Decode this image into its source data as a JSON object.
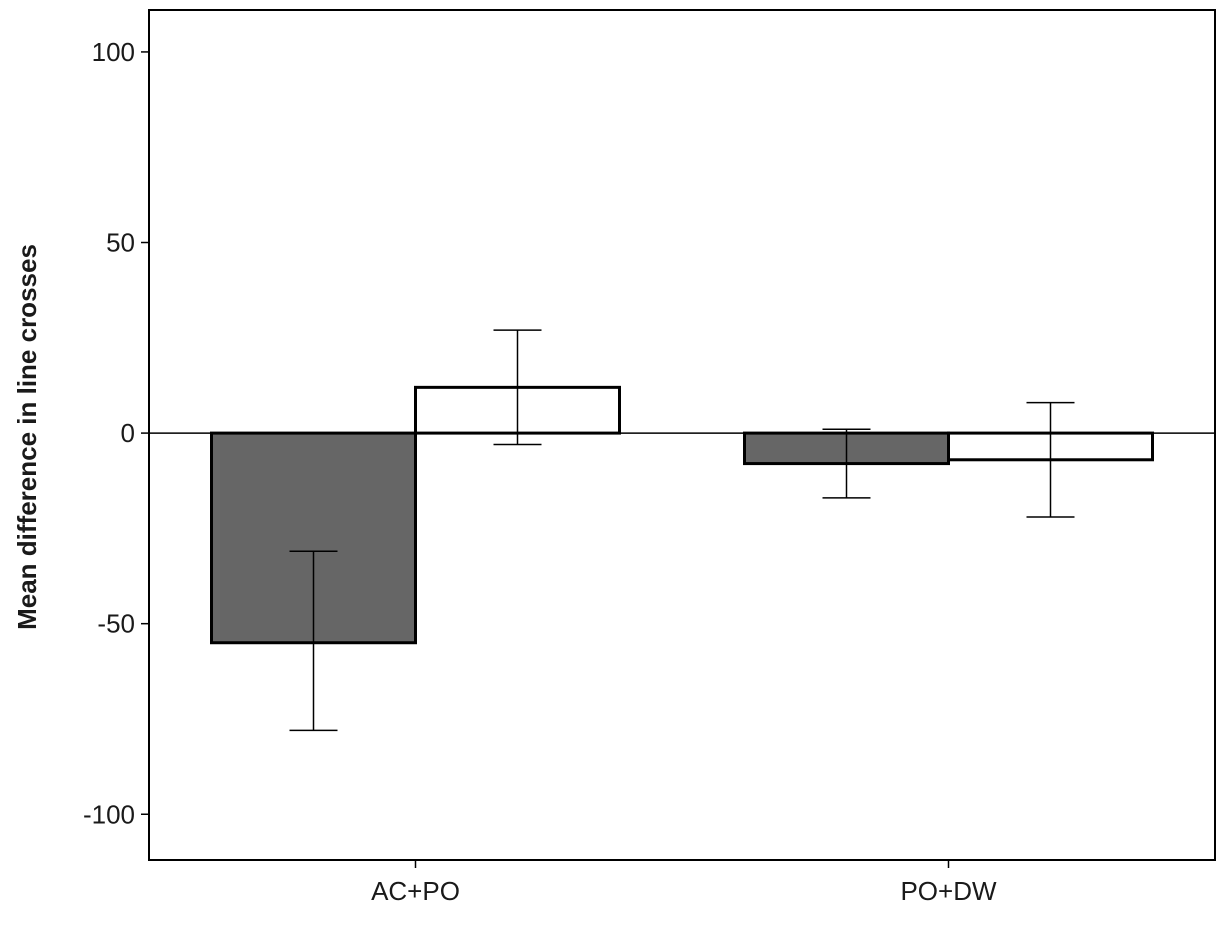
{
  "chart_data": {
    "type": "bar",
    "categories": [
      "AC+PO",
      "PO+DW"
    ],
    "series": [
      {
        "fill": "#666666",
        "values": [
          -55,
          -8
        ],
        "error_low": [
          -78,
          -17
        ],
        "error_high": [
          -31,
          1
        ]
      },
      {
        "fill": "#ffffff",
        "values": [
          12,
          -7
        ],
        "error_low": [
          -3,
          -22
        ],
        "error_high": [
          27,
          8
        ]
      }
    ],
    "ylabel": "Mean difference in line crosses",
    "xlabel": "",
    "ylim": [
      -112,
      111
    ],
    "yticks": [
      100,
      50,
      0,
      -50,
      -100
    ],
    "ytick_labels": [
      "100",
      "50",
      "0",
      "-50",
      "-100"
    ],
    "reference_line": 0,
    "grid": false,
    "legend": "none"
  }
}
